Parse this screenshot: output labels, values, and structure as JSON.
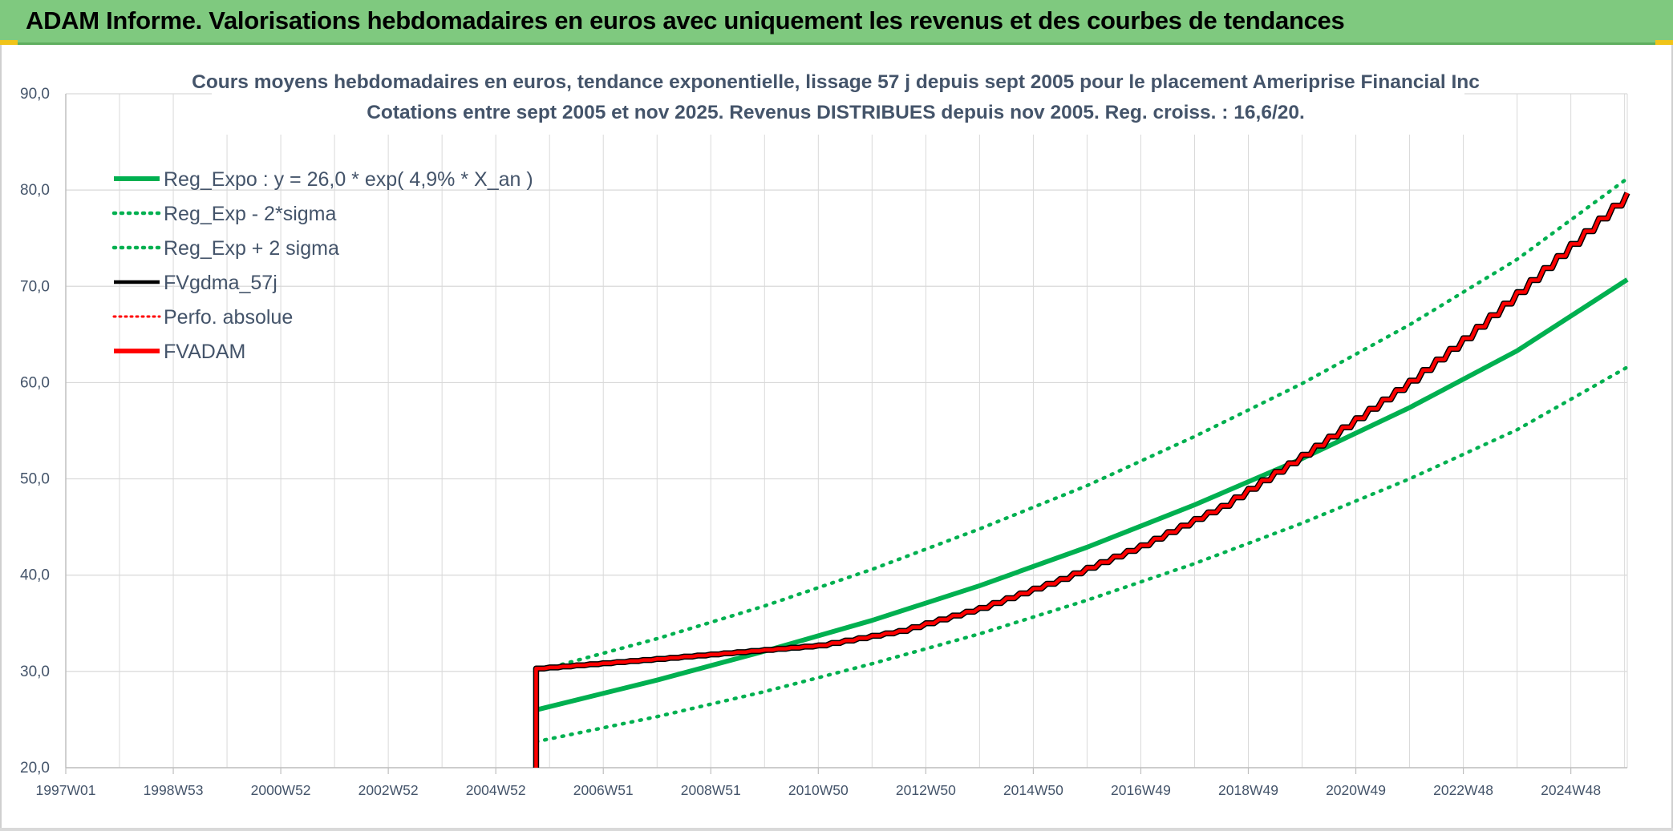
{
  "banner": {
    "title": "ADAM Informe. Valorisations hebdomadaires en euros avec uniquement les revenus et des courbes de tendances"
  },
  "colors": {
    "banner_bg": "#7fc97f",
    "reg_green": "#00b050",
    "adam_red": "#ff0000",
    "black": "#000000",
    "grid": "#d9d9d9",
    "text": "#44546a"
  },
  "chart_data": {
    "type": "line",
    "title_line1": "Cours moyens hebdomadaires en euros, tendance exponentielle, lissage 57 j depuis sept 2005 pour le placement Ameriprise Financial Inc",
    "title_line2": "Cotations entre sept 2005 et nov 2025. Revenus DISTRIBUES depuis nov 2005. Reg. croiss. : 16,6/20.",
    "x_tick_labels": [
      "1997W01",
      "1998W53",
      "2000W52",
      "2002W52",
      "2004W52",
      "2006W51",
      "2008W51",
      "2010W50",
      "2012W50",
      "2014W50",
      "2016W49",
      "2018W49",
      "2020W49",
      "2022W48",
      "2024W48"
    ],
    "x_tick_years": [
      1997.0,
      1999.0,
      2001.0,
      2003.0,
      2005.0,
      2007.0,
      2009.0,
      2011.0,
      2013.0,
      2015.0,
      2017.0,
      2019.0,
      2021.0,
      2023.0,
      2025.0
    ],
    "xlim": [
      1997.0,
      2026.05
    ],
    "ylim": [
      20,
      90
    ],
    "y_ticks": [
      20,
      30,
      40,
      50,
      60,
      70,
      80,
      90
    ],
    "y_tick_labels": [
      "20,0",
      "30,0",
      "40,0",
      "50,0",
      "60,0",
      "70,0",
      "80,0",
      "90,0"
    ],
    "grid": true,
    "legend_position": "top-left",
    "series": [
      {
        "name": "Reg_Expo : y = 26,0 * exp( 4,9% *  X_an )",
        "style": "solid-thick",
        "color": "#00b050",
        "x": [
          2005.75,
          2008.0,
          2010.0,
          2012.0,
          2014.0,
          2016.0,
          2018.0,
          2020.0,
          2022.0,
          2024.0,
          2026.05
        ],
        "y": [
          26.0,
          29.1,
          32.1,
          35.3,
          38.9,
          42.9,
          47.3,
          52.1,
          57.4,
          63.3,
          70.7
        ]
      },
      {
        "name": "Reg_Exp - 2*sigma",
        "style": "dotted",
        "color": "#00b050",
        "x": [
          2005.75,
          2008.0,
          2010.0,
          2012.0,
          2014.0,
          2016.0,
          2018.0,
          2020.0,
          2022.0,
          2024.0,
          2026.05
        ],
        "y": [
          22.7,
          25.3,
          27.9,
          30.8,
          33.9,
          37.4,
          41.2,
          45.4,
          50.0,
          55.1,
          61.6
        ]
      },
      {
        "name": "Reg_Exp + 2 sigma",
        "style": "dotted",
        "color": "#00b050",
        "x": [
          2005.75,
          2008.0,
          2010.0,
          2012.0,
          2014.0,
          2016.0,
          2018.0,
          2020.0,
          2022.0,
          2024.0,
          2026.05
        ],
        "y": [
          30.0,
          33.4,
          36.8,
          40.6,
          44.8,
          49.3,
          54.4,
          59.9,
          66.0,
          72.8,
          81.2
        ]
      },
      {
        "name": "FVgdma_57j",
        "style": "solid",
        "color": "#000000",
        "x": [
          2005.75,
          2005.75,
          2008.0,
          2009.5,
          2011.0,
          2012.5,
          2014.0,
          2015.5,
          2017.0,
          2018.5,
          2020.0,
          2021.0,
          2022.0,
          2023.0,
          2024.0,
          2025.0,
          2026.05
        ],
        "y": [
          20.0,
          30.3,
          31.3,
          32.0,
          32.7,
          34.2,
          36.6,
          39.6,
          43.1,
          47.2,
          52.5,
          56.3,
          60.2,
          64.6,
          69.4,
          74.4,
          79.7
        ]
      },
      {
        "name": "Perfo. absolue",
        "style": "dotted",
        "color": "#ff0000",
        "x": [],
        "y": []
      },
      {
        "name": "FVADAM",
        "style": "solid-thick-stepped",
        "color": "#ff0000",
        "x": [
          2005.75,
          2005.75,
          2008.0,
          2009.5,
          2011.0,
          2012.5,
          2014.0,
          2015.5,
          2017.0,
          2018.5,
          2020.0,
          2021.0,
          2022.0,
          2023.0,
          2024.0,
          2025.0,
          2026.05
        ],
        "y": [
          20.0,
          30.3,
          31.3,
          32.0,
          32.7,
          34.2,
          36.6,
          39.6,
          43.1,
          47.2,
          52.5,
          56.3,
          60.2,
          64.6,
          69.4,
          74.4,
          79.7
        ]
      }
    ]
  }
}
